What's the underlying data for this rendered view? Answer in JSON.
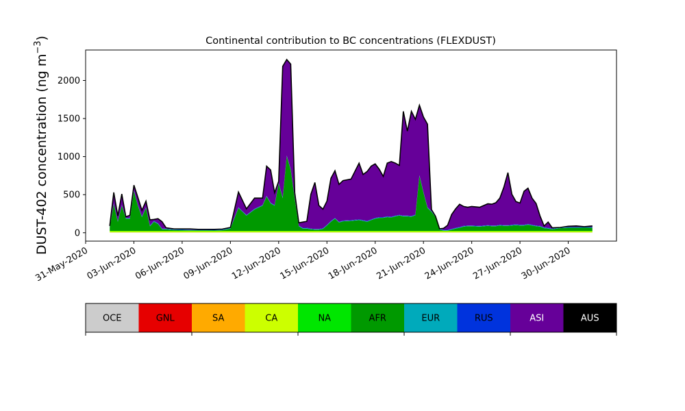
{
  "chart_data": {
    "type": "area",
    "stacked": true,
    "title": "Continental contribution to BC concentrations (FLEXDUST)",
    "ylabel_main": "DUST-402 concentration (ng m",
    "ylabel_sup": "−3",
    "ylabel_close": ")",
    "xlabel": "",
    "x_axis_type": "date",
    "xlim": [
      "2020-05-31",
      "2020-07-03"
    ],
    "ylim": [
      -110,
      2400
    ],
    "yticks": [
      0,
      500,
      1000,
      1500,
      2000
    ],
    "xticks": [
      "31-May-2020",
      "03-Jun-2020",
      "06-Jun-2020",
      "09-Jun-2020",
      "12-Jun-2020",
      "15-Jun-2020",
      "18-Jun-2020",
      "21-Jun-2020",
      "24-Jun-2020",
      "27-Jun-2020",
      "30-Jun-2020"
    ],
    "grid": false,
    "x_dates": [
      "2020-06-01T12:00",
      "2020-06-01T18:00",
      "2020-06-02T00:00",
      "2020-06-02T06:00",
      "2020-06-02T12:00",
      "2020-06-02T18:00",
      "2020-06-03T00:00",
      "2020-06-03T06:00",
      "2020-06-03T12:00",
      "2020-06-03T18:00",
      "2020-06-04T00:00",
      "2020-06-04T06:00",
      "2020-06-04T12:00",
      "2020-06-04T18:00",
      "2020-06-05T00:00",
      "2020-06-05T12:00",
      "2020-06-06T00:00",
      "2020-06-06T12:00",
      "2020-06-07T00:00",
      "2020-06-07T12:00",
      "2020-06-08T00:00",
      "2020-06-08T12:00",
      "2020-06-09T00:00",
      "2020-06-09T12:00",
      "2020-06-10T00:00",
      "2020-06-10T12:00",
      "2020-06-11T00:00",
      "2020-06-11T06:00",
      "2020-06-11T12:00",
      "2020-06-11T18:00",
      "2020-06-12T00:00",
      "2020-06-12T06:00",
      "2020-06-12T12:00",
      "2020-06-12T18:00",
      "2020-06-13T00:00",
      "2020-06-13T06:00",
      "2020-06-13T12:00",
      "2020-06-13T18:00",
      "2020-06-14T00:00",
      "2020-06-14T06:00",
      "2020-06-14T12:00",
      "2020-06-14T18:00",
      "2020-06-15T00:00",
      "2020-06-15T06:00",
      "2020-06-15T12:00",
      "2020-06-15T18:00",
      "2020-06-16T00:00",
      "2020-06-16T12:00",
      "2020-06-17T00:00",
      "2020-06-17T06:00",
      "2020-06-17T12:00",
      "2020-06-17T18:00",
      "2020-06-18T00:00",
      "2020-06-18T06:00",
      "2020-06-18T12:00",
      "2020-06-18T18:00",
      "2020-06-19T00:00",
      "2020-06-19T06:00",
      "2020-06-19T12:00",
      "2020-06-19T18:00",
      "2020-06-20T00:00",
      "2020-06-20T06:00",
      "2020-06-20T12:00",
      "2020-06-20T18:00",
      "2020-06-21T00:00",
      "2020-06-21T06:00",
      "2020-06-21T12:00",
      "2020-06-21T18:00",
      "2020-06-22T00:00",
      "2020-06-22T06:00",
      "2020-06-22T12:00",
      "2020-06-22T18:00",
      "2020-06-23T00:00",
      "2020-06-23T06:00",
      "2020-06-23T12:00",
      "2020-06-23T18:00",
      "2020-06-24T00:00",
      "2020-06-24T12:00",
      "2020-06-25T00:00",
      "2020-06-25T06:00",
      "2020-06-25T12:00",
      "2020-06-25T18:00",
      "2020-06-26T00:00",
      "2020-06-26T06:00",
      "2020-06-26T12:00",
      "2020-06-26T18:00",
      "2020-06-27T00:00",
      "2020-06-27T06:00",
      "2020-06-27T12:00",
      "2020-06-27T18:00",
      "2020-06-28T00:00",
      "2020-06-28T06:00",
      "2020-06-28T12:00",
      "2020-06-28T18:00",
      "2020-06-29T00:00",
      "2020-06-29T12:00",
      "2020-06-30T00:00",
      "2020-06-30T12:00",
      "2020-07-01T00:00",
      "2020-07-01T12:00"
    ],
    "series": [
      {
        "name": "OCE",
        "color": "#cccccc",
        "values": [
          3,
          3,
          3,
          3,
          3,
          3,
          3,
          3,
          3,
          3,
          3,
          3,
          3,
          3,
          3,
          3,
          3,
          3,
          3,
          3,
          3,
          3,
          3,
          3,
          3,
          3,
          3,
          3,
          3,
          3,
          3,
          3,
          3,
          3,
          3,
          3,
          3,
          3,
          3,
          3,
          3,
          3,
          3,
          3,
          3,
          3,
          3,
          3,
          3,
          3,
          3,
          3,
          3,
          3,
          3,
          3,
          3,
          3,
          3,
          3,
          3,
          3,
          3,
          3,
          3,
          3,
          3,
          3,
          3,
          3,
          3,
          3,
          3,
          3,
          3,
          3,
          3,
          3,
          3,
          3,
          3,
          3,
          3,
          3,
          3,
          3,
          3,
          3,
          3,
          3,
          3,
          3,
          3,
          3,
          3,
          3,
          3,
          3,
          3,
          3
        ]
      },
      {
        "name": "GNL",
        "color": "#e60000",
        "values": [
          0,
          0,
          0,
          0,
          0,
          0,
          0,
          0,
          0,
          0,
          0,
          0,
          0,
          0,
          0,
          0,
          0,
          0,
          0,
          0,
          0,
          0,
          0,
          0,
          0,
          0,
          0,
          0,
          0,
          0,
          0,
          0,
          0,
          0,
          0,
          0,
          0,
          0,
          0,
          0,
          0,
          0,
          0,
          0,
          0,
          0,
          0,
          0,
          0,
          0,
          0,
          0,
          0,
          0,
          0,
          0,
          0,
          0,
          0,
          0,
          0,
          0,
          0,
          0,
          0,
          0,
          0,
          0,
          0,
          0,
          0,
          0,
          0,
          0,
          0,
          0,
          0,
          0,
          0,
          0,
          0,
          0,
          0,
          0,
          0,
          0,
          0,
          0,
          0,
          0,
          0,
          0,
          0,
          0,
          0,
          0,
          0,
          0,
          0,
          0
        ]
      },
      {
        "name": "SA",
        "color": "#ffaa00",
        "values": [
          2,
          2,
          2,
          2,
          2,
          2,
          2,
          2,
          2,
          2,
          2,
          2,
          2,
          2,
          2,
          2,
          2,
          2,
          2,
          2,
          2,
          2,
          2,
          2,
          2,
          2,
          2,
          2,
          2,
          2,
          2,
          2,
          2,
          2,
          2,
          2,
          2,
          2,
          2,
          2,
          2,
          2,
          2,
          2,
          2,
          2,
          2,
          2,
          2,
          2,
          2,
          2,
          2,
          2,
          2,
          2,
          2,
          2,
          2,
          2,
          2,
          2,
          2,
          2,
          2,
          2,
          2,
          2,
          2,
          2,
          2,
          2,
          2,
          2,
          2,
          2,
          2,
          2,
          2,
          2,
          2,
          2,
          2,
          2,
          2,
          2,
          2,
          2,
          2,
          2,
          2,
          2,
          2,
          2,
          2,
          2,
          2,
          2,
          2,
          2
        ]
      },
      {
        "name": "CA",
        "color": "#ccff00",
        "values": [
          15,
          15,
          15,
          15,
          15,
          15,
          15,
          15,
          15,
          15,
          15,
          15,
          15,
          15,
          15,
          15,
          15,
          15,
          15,
          15,
          15,
          15,
          15,
          15,
          15,
          15,
          15,
          15,
          15,
          15,
          15,
          15,
          15,
          15,
          15,
          15,
          15,
          15,
          15,
          15,
          15,
          15,
          15,
          15,
          15,
          15,
          15,
          15,
          15,
          15,
          15,
          15,
          15,
          15,
          15,
          15,
          15,
          15,
          15,
          15,
          15,
          15,
          15,
          15,
          15,
          15,
          15,
          15,
          15,
          15,
          15,
          15,
          15,
          15,
          15,
          15,
          15,
          15,
          15,
          15,
          15,
          15,
          15,
          15,
          15,
          15,
          15,
          15,
          15,
          15,
          15,
          15,
          15,
          15,
          15,
          15,
          15,
          15,
          15,
          15
        ]
      },
      {
        "name": "NA",
        "color": "#00e600",
        "values": [
          5,
          5,
          5,
          5,
          5,
          5,
          5,
          5,
          5,
          5,
          5,
          5,
          5,
          5,
          5,
          5,
          5,
          5,
          5,
          5,
          5,
          5,
          5,
          5,
          5,
          5,
          5,
          5,
          5,
          5,
          5,
          5,
          5,
          5,
          5,
          5,
          5,
          5,
          5,
          5,
          5,
          5,
          5,
          5,
          5,
          5,
          5,
          5,
          5,
          5,
          5,
          5,
          5,
          5,
          5,
          5,
          5,
          5,
          5,
          5,
          5,
          5,
          5,
          5,
          5,
          5,
          5,
          5,
          5,
          5,
          5,
          5,
          5,
          5,
          5,
          5,
          5,
          5,
          5,
          5,
          5,
          5,
          5,
          5,
          5,
          5,
          5,
          5,
          5,
          5,
          5,
          5,
          5,
          5,
          5,
          5,
          5,
          5,
          5,
          5
        ]
      },
      {
        "name": "AFR",
        "color": "#009900",
        "values": [
          40,
          350,
          120,
          330,
          160,
          160,
          520,
          330,
          180,
          300,
          60,
          120,
          90,
          20,
          20,
          10,
          8,
          6,
          5,
          5,
          4,
          8,
          30,
          300,
          200,
          280,
          330,
          450,
          360,
          330,
          620,
          430,
          980,
          800,
          420,
          60,
          30,
          30,
          20,
          15,
          15,
          25,
          70,
          120,
          160,
          110,
          125,
          130,
          140,
          130,
          120,
          140,
          160,
          170,
          170,
          180,
          175,
          190,
          200,
          190,
          190,
          185,
          205,
          720,
          500,
          300,
          250,
          180,
          15,
          3,
          3,
          15,
          30,
          40,
          55,
          60,
          60,
          55,
          65,
          60,
          60,
          70,
          65,
          65,
          70,
          75,
          70,
          70,
          80,
          70,
          60,
          55,
          35,
          30,
          20,
          35,
          40,
          40,
          40,
          40
        ]
      },
      {
        "name": "EUR",
        "color": "#00aabb",
        "values": [
          5,
          5,
          5,
          5,
          5,
          5,
          5,
          5,
          5,
          5,
          5,
          5,
          5,
          5,
          5,
          5,
          5,
          5,
          5,
          5,
          5,
          5,
          5,
          5,
          5,
          5,
          5,
          5,
          5,
          5,
          5,
          5,
          5,
          5,
          5,
          5,
          5,
          5,
          5,
          5,
          5,
          5,
          5,
          5,
          5,
          5,
          5,
          5,
          5,
          5,
          5,
          5,
          5,
          5,
          5,
          5,
          5,
          5,
          5,
          5,
          5,
          5,
          5,
          5,
          5,
          5,
          5,
          5,
          5,
          5,
          5,
          5,
          5,
          5,
          5,
          5,
          5,
          5,
          5,
          5,
          5,
          5,
          5,
          5,
          5,
          5,
          5,
          5,
          5,
          5,
          5,
          5,
          5,
          5,
          5,
          5,
          5,
          5,
          5,
          5
        ]
      },
      {
        "name": "RUS",
        "color": "#0033dd",
        "values": [
          5,
          5,
          5,
          5,
          5,
          5,
          5,
          5,
          5,
          5,
          5,
          5,
          5,
          5,
          5,
          5,
          5,
          5,
          5,
          5,
          5,
          5,
          5,
          5,
          5,
          5,
          5,
          5,
          5,
          5,
          5,
          5,
          5,
          5,
          5,
          5,
          5,
          5,
          5,
          5,
          5,
          5,
          5,
          5,
          5,
          5,
          5,
          5,
          5,
          5,
          5,
          5,
          5,
          5,
          5,
          5,
          5,
          5,
          5,
          5,
          5,
          5,
          5,
          5,
          5,
          5,
          5,
          5,
          5,
          5,
          5,
          5,
          5,
          5,
          5,
          5,
          5,
          5,
          5,
          5,
          5,
          5,
          5,
          5,
          5,
          5,
          5,
          5,
          5,
          5,
          5,
          5,
          5,
          5,
          5,
          5,
          5,
          5,
          5,
          5
        ]
      },
      {
        "name": "ASI",
        "color": "#660099",
        "values": [
          15,
          145,
          65,
          145,
          15,
          35,
          70,
          100,
          80,
          80,
          75,
          20,
          60,
          90,
          10,
          5,
          7,
          9,
          5,
          5,
          6,
          5,
          5,
          200,
          80,
          140,
          90,
          390,
          430,
          160,
          20,
          1720,
          1260,
          1380,
          70,
          35,
          75,
          85,
          450,
          610,
          310,
          250,
          310,
          560,
          620,
          490,
          525,
          540,
          740,
          600,
          650,
          700,
          710,
          630,
          535,
          700,
          725,
          690,
          650,
          1370,
          1110,
          1375,
          1250,
          920,
          985,
          1090,
          20,
          2,
          2,
          20,
          60,
          190,
          250,
          300,
          255,
          240,
          250,
          245,
          280,
          280,
          300,
          350,
          500,
          690,
          400,
          300,
          285,
          440,
          470,
          350,
          290,
          130,
          20,
          75,
          10,
          0,
          10,
          15,
          5,
          15
        ]
      },
      {
        "name": "AUS",
        "color": "#000000",
        "values": [
          0,
          0,
          0,
          0,
          0,
          0,
          0,
          0,
          0,
          0,
          0,
          0,
          0,
          0,
          0,
          0,
          0,
          0,
          0,
          0,
          0,
          0,
          0,
          0,
          0,
          0,
          0,
          0,
          0,
          0,
          0,
          0,
          0,
          0,
          0,
          0,
          0,
          0,
          0,
          0,
          0,
          0,
          0,
          0,
          0,
          0,
          0,
          0,
          0,
          0,
          0,
          0,
          0,
          0,
          0,
          0,
          0,
          0,
          0,
          0,
          0,
          0,
          0,
          0,
          0,
          0,
          0,
          0,
          0,
          0,
          0,
          0,
          0,
          0,
          0,
          0,
          0,
          0,
          0,
          0,
          0,
          0,
          0,
          0,
          0,
          0,
          0,
          0,
          0,
          0,
          0,
          0,
          0,
          0,
          0,
          0,
          0,
          0,
          0,
          0
        ]
      }
    ],
    "legend": {
      "placement": "bottom colorbar",
      "entries": [
        {
          "label": "OCE",
          "color": "#cccccc",
          "text_color": "#000000"
        },
        {
          "label": "GNL",
          "color": "#e60000",
          "text_color": "#000000"
        },
        {
          "label": "SA",
          "color": "#ffaa00",
          "text_color": "#000000"
        },
        {
          "label": "CA",
          "color": "#ccff00",
          "text_color": "#000000"
        },
        {
          "label": "NA",
          "color": "#00e600",
          "text_color": "#000000"
        },
        {
          "label": "AFR",
          "color": "#009900",
          "text_color": "#000000"
        },
        {
          "label": "EUR",
          "color": "#00aabb",
          "text_color": "#000000"
        },
        {
          "label": "RUS",
          "color": "#0033dd",
          "text_color": "#000000"
        },
        {
          "label": "ASI",
          "color": "#660099",
          "text_color": "#ffffff"
        },
        {
          "label": "AUS",
          "color": "#000000",
          "text_color": "#ffffff"
        }
      ]
    },
    "total_line_color": "#000000"
  }
}
